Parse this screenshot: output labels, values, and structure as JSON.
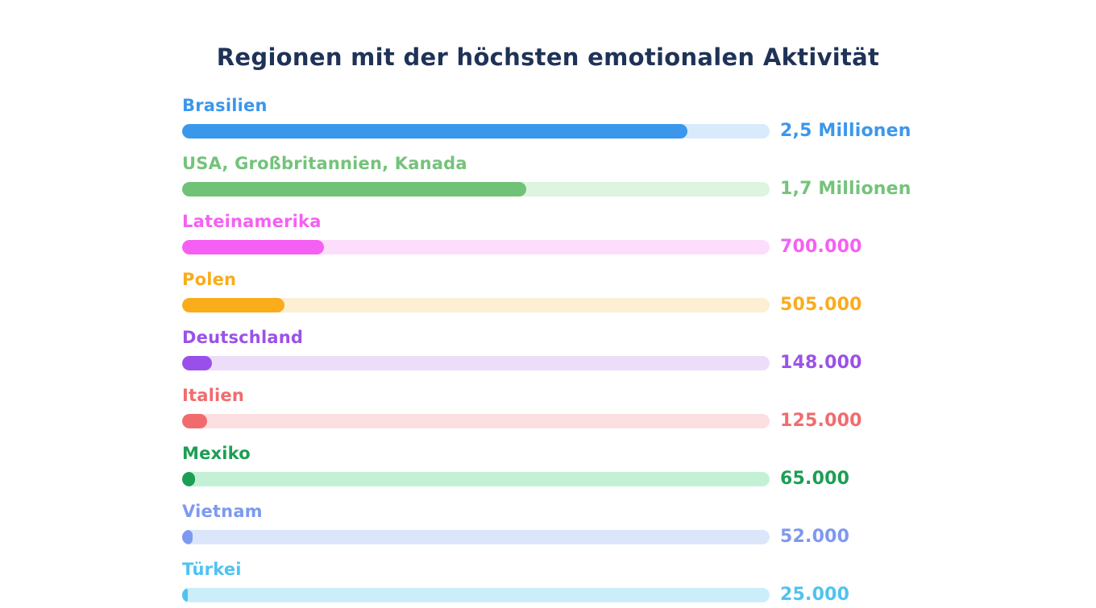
{
  "title": "Regionen mit der höchsten emotionalen Aktivität",
  "title_color": "#1f3257",
  "chart_data": {
    "type": "bar",
    "orientation": "horizontal",
    "title": "Regionen mit der höchsten emotionalen Aktivität",
    "categories": [
      "Brasilien",
      "USA, Großbritannien, Kanada",
      "Lateinamerika",
      "Polen",
      "Deutschland",
      "Italien",
      "Mexiko",
      "Vietnam",
      "Türkei"
    ],
    "values": [
      2500000,
      1700000,
      700000,
      505000,
      148000,
      125000,
      65000,
      52000,
      25000
    ],
    "value_labels": [
      "2,5 Millionen",
      "1,7 Millionen",
      "700.000",
      "505.000",
      "148.000",
      "125.000",
      "65.000",
      "52.000",
      "25.000"
    ],
    "xlim": [
      0,
      2900000
    ],
    "grid": false,
    "legend": false,
    "rows": [
      {
        "label": "Brasilien",
        "value_label": "2,5 Millionen",
        "percent": 86.0,
        "fill_color": "#3b97ec",
        "track_color": "#d8eafc",
        "text_color": "#3b97ec"
      },
      {
        "label": "USA, Großbritannien, Kanada",
        "value_label": "1,7 Millionen",
        "percent": 58.6,
        "fill_color": "#6fc276",
        "track_color": "#ddf4e0",
        "text_color": "#74c37a"
      },
      {
        "label": "Lateinamerika",
        "value_label": "700.000",
        "percent": 24.1,
        "fill_color": "#f55ff3",
        "track_color": "#fcddfb",
        "text_color": "#f560f3"
      },
      {
        "label": "Polen",
        "value_label": "505.000",
        "percent": 17.4,
        "fill_color": "#faac1b",
        "track_color": "#fdefd3",
        "text_color": "#f9ac1c"
      },
      {
        "label": "Deutschland",
        "value_label": "148.000",
        "percent": 5.1,
        "fill_color": "#9950ea",
        "track_color": "#ecddf9",
        "text_color": "#9a52e8"
      },
      {
        "label": "Italien",
        "value_label": "125.000",
        "percent": 4.3,
        "fill_color": "#f16b6e",
        "track_color": "#fcdfe1",
        "text_color": "#f16b6e"
      },
      {
        "label": "Mexiko",
        "value_label": "65.000",
        "percent": 2.25,
        "fill_color": "#1d9e55",
        "track_color": "#c4f1d6",
        "text_color": "#1d9e55"
      },
      {
        "label": "Vietnam",
        "value_label": "52.000",
        "percent": 1.8,
        "fill_color": "#7d99f0",
        "track_color": "#dbe6fa",
        "text_color": "#7d99f0"
      },
      {
        "label": "Türkei",
        "value_label": "25.000",
        "percent": 0.9,
        "fill_color": "#4fc3f0",
        "track_color": "#cbeefa",
        "text_color": "#4fc3f0"
      }
    ]
  }
}
